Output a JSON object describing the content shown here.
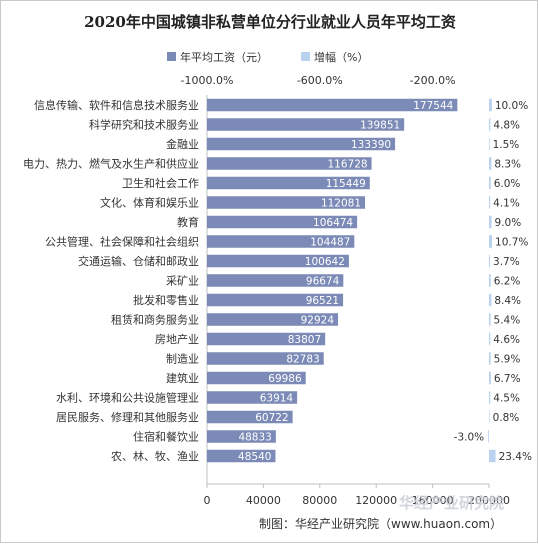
{
  "chart_data": {
    "type": "bar",
    "title": "2020年中国城镇非私营单位分行业就业人员年平均工资",
    "legend": {
      "position": "top",
      "items": [
        "年平均工资（元）",
        "增幅（%）"
      ]
    },
    "categories": [
      "信息传输、软件和信息技术服务业",
      "科学研究和技术服务业",
      "金融业",
      "电力、热力、燃气及水生产和供应业",
      "卫生和社会工作",
      "文化、体育和娱乐业",
      "教育",
      "公共管理、社会保障和社会组织",
      "交通运输、仓储和邮政业",
      "采矿业",
      "批发和零售业",
      "租赁和商务服务业",
      "房地产业",
      "制造业",
      "建筑业",
      "水利、环境和公共设施管理业",
      "居民服务、修理和其他服务业",
      "住宿和餐饮业",
      "农、林、牧、渔业"
    ],
    "series": [
      {
        "name": "年平均工资（元）",
        "values": [
          177544,
          139851,
          133390,
          116728,
          115449,
          112081,
          106474,
          104487,
          100642,
          96674,
          96521,
          92924,
          83807,
          82783,
          69986,
          63914,
          60722,
          48833,
          48540
        ],
        "labels": [
          "177544",
          "139851",
          "133390",
          "116728",
          "115449",
          "112081",
          "106474",
          "104487",
          "100642",
          "96674",
          "96521",
          "92924",
          "83807",
          "82783",
          "69986",
          "63914",
          "60722",
          "48833",
          "48540"
        ]
      },
      {
        "name": "增幅（%）",
        "values": [
          10.0,
          4.8,
          1.5,
          8.3,
          6.0,
          4.1,
          9.0,
          10.7,
          3.7,
          6.2,
          8.4,
          5.4,
          4.6,
          5.9,
          6.7,
          4.5,
          0.8,
          -3.0,
          23.4
        ],
        "labels": [
          "10.0%",
          "4.8%",
          "1.5%",
          "8.3%",
          "6.0%",
          "4.1%",
          "9.0%",
          "10.7%",
          "3.7%",
          "6.2%",
          "8.4%",
          "5.4%",
          "4.6%",
          "5.9%",
          "6.7%",
          "4.5%",
          "0.8%",
          "-3.0%",
          "23.4%"
        ]
      }
    ],
    "x_bottom": {
      "range": [
        0,
        200000
      ],
      "ticks": [
        "0",
        "40000",
        "80000",
        "120000",
        "160000",
        "200000"
      ]
    },
    "x_top": {
      "range": [
        -1000,
        0
      ],
      "ticks": [
        "-1000.0%",
        "-600.0%",
        "-200.0%"
      ]
    },
    "colors": {
      "wage": "#7b8ab6",
      "growth": "#b9d3ee"
    },
    "source": "制图：华经产业研究院（www.huaon.com）",
    "watermark": "华经产业研究院"
  }
}
